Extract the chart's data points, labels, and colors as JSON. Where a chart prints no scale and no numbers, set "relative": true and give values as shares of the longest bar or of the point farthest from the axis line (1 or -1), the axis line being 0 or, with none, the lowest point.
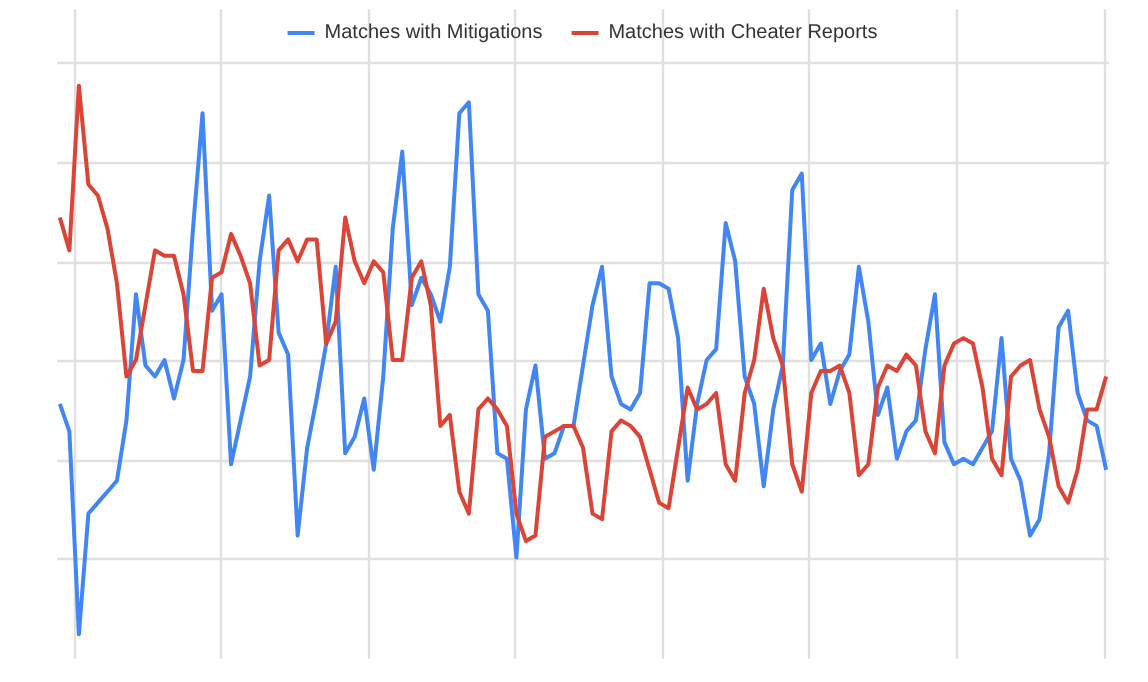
{
  "chart_data": {
    "type": "line",
    "relative": true,
    "grid": true,
    "legend": "top",
    "line_style": "solid",
    "categories": [
      null,
      null,
      null,
      null,
      null,
      null,
      null,
      null,
      null,
      null,
      null,
      null,
      null,
      null,
      null,
      null,
      null,
      null,
      null,
      null,
      null,
      null,
      null,
      null,
      null,
      null,
      null,
      null,
      null,
      null,
      null,
      null,
      null,
      null,
      null,
      null,
      null,
      null,
      null,
      null,
      null,
      null,
      null,
      null,
      null,
      null,
      null,
      null,
      null,
      null,
      null,
      null,
      null,
      null,
      null,
      null,
      null,
      null,
      null,
      null,
      null,
      null,
      null,
      null,
      null,
      null,
      null,
      null,
      null,
      null,
      null,
      null,
      null,
      null,
      null,
      null,
      null,
      null,
      null,
      null,
      null,
      null,
      null,
      null,
      null,
      null,
      null,
      null,
      null,
      null,
      null,
      null,
      null,
      null,
      null,
      null,
      null,
      null,
      null,
      null,
      null,
      null,
      null,
      null,
      null,
      null,
      null,
      null,
      null,
      null,
      null
    ],
    "series": [
      {
        "name": "Matches with Mitigations",
        "color": "#4285f4",
        "values": [
          0.42,
          0.37,
          0,
          0.22,
          0.24,
          0.26,
          0.28,
          0.39,
          0.62,
          0.49,
          0.47,
          0.5,
          0.43,
          0.5,
          0.74,
          0.95,
          0.59,
          0.62,
          0.31,
          0.39,
          0.47,
          0.68,
          0.8,
          0.55,
          0.51,
          0.18,
          0.34,
          0.43,
          0.53,
          0.67,
          0.33,
          0.36,
          0.43,
          0.3,
          0.47,
          0.74,
          0.88,
          0.6,
          0.65,
          0.62,
          0.57,
          0.67,
          0.95,
          0.97,
          0.62,
          0.59,
          0.33,
          0.32,
          0.14,
          0.41,
          0.49,
          0.32,
          0.33,
          0.38,
          0.38,
          0.49,
          0.6,
          0.67,
          0.47,
          0.42,
          0.41,
          0.44,
          0.64,
          0.64,
          0.63,
          0.54,
          0.28,
          0.42,
          0.5,
          0.52,
          0.75,
          0.68,
          0.47,
          0.42,
          0.27,
          0.41,
          0.49,
          0.81,
          0.84,
          0.5,
          0.53,
          0.42,
          0.48,
          0.51,
          0.67,
          0.57,
          0.4,
          0.45,
          0.32,
          0.37,
          0.39,
          0.52,
          0.62,
          0.35,
          0.31,
          0.32,
          0.31,
          0.34,
          0.37,
          0.54,
          0.32,
          0.28,
          0.18,
          0.21,
          0.33,
          0.56,
          0.59,
          0.44,
          0.39,
          0.38,
          0.3
        ]
      },
      {
        "name": "Matches with Cheater Reports",
        "color": "#db4437",
        "values": [
          0.76,
          0.7,
          1.0,
          0.82,
          0.8,
          0.74,
          0.64,
          0.47,
          0.5,
          0.6,
          0.7,
          0.69,
          0.69,
          0.62,
          0.48,
          0.48,
          0.65,
          0.66,
          0.73,
          0.69,
          0.64,
          0.49,
          0.5,
          0.7,
          0.72,
          0.68,
          0.72,
          0.72,
          0.53,
          0.57,
          0.76,
          0.68,
          0.64,
          0.68,
          0.66,
          0.5,
          0.5,
          0.65,
          0.68,
          0.6,
          0.38,
          0.4,
          0.26,
          0.22,
          0.41,
          0.43,
          0.41,
          0.38,
          0.22,
          0.17,
          0.18,
          0.36,
          0.37,
          0.38,
          0.38,
          0.34,
          0.22,
          0.21,
          0.37,
          0.39,
          0.38,
          0.36,
          0.3,
          0.24,
          0.23,
          0.34,
          0.45,
          0.41,
          0.42,
          0.44,
          0.31,
          0.28,
          0.44,
          0.5,
          0.63,
          0.54,
          0.49,
          0.31,
          0.26,
          0.44,
          0.48,
          0.48,
          0.49,
          0.44,
          0.29,
          0.31,
          0.45,
          0.49,
          0.48,
          0.51,
          0.49,
          0.37,
          0.33,
          0.49,
          0.53,
          0.54,
          0.53,
          0.45,
          0.32,
          0.29,
          0.47,
          0.49,
          0.5,
          0.41,
          0.36,
          0.27,
          0.24,
          0.3,
          0.41,
          0.41,
          0.47
        ]
      }
    ]
  }
}
